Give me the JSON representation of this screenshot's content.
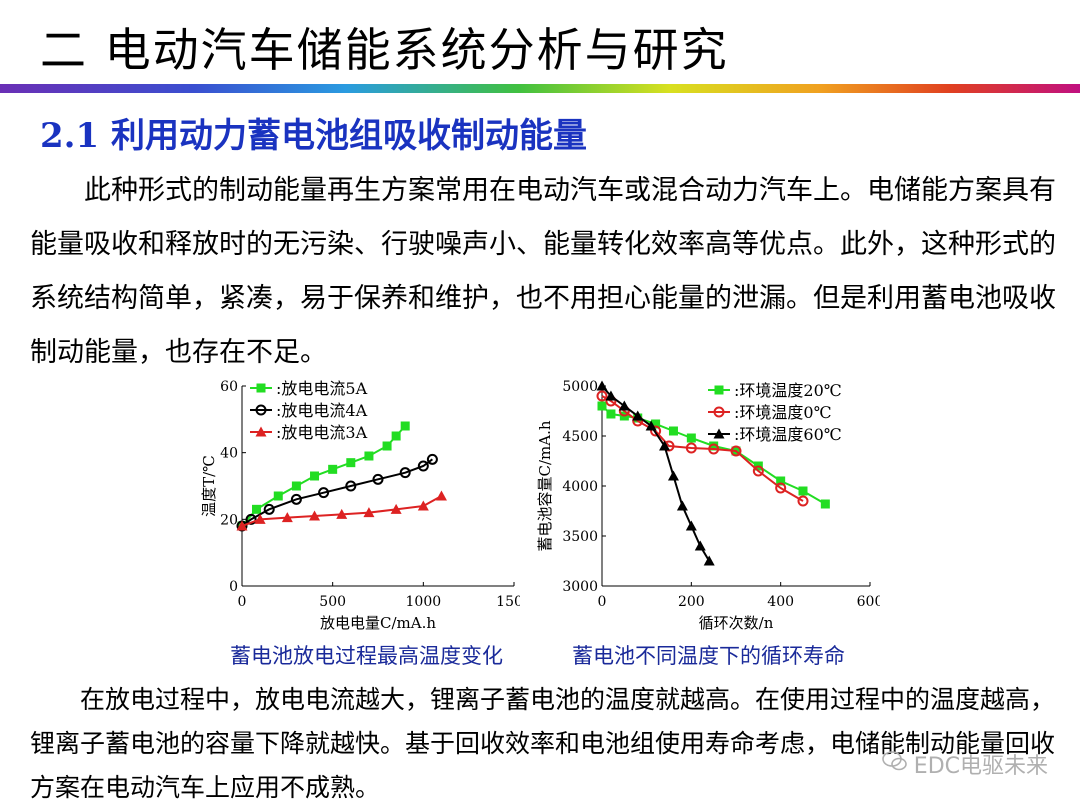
{
  "slide": {
    "title": "二  电动汽车储能系统分析与研究",
    "section_heading": "2.1 利用动力蓄电池组吸收制动能量"
  },
  "paragraphs": {
    "p1": "　　此种形式的制动能量再生方案常用在电动汽车或混合动力汽车上。电储能方案具有能量吸收和释放时的无污染、行驶噪声小、能量转化效率高等优点。此外，这种形式的系统结构简单，紧凑，易于保养和维护，也不用担心能量的泄漏。但是利用蓄电池吸收制动能量，也存在不足。",
    "p2": "　　在放电过程中，放电电流越大，锂离子蓄电池的温度就越高。在使用过程中的温度越高，锂离子蓄电池的容量下降就越快。基于回收效率和电池组使用寿命考虑，电储能制动能量回收方案在电动汽车上应用不成熟。"
  },
  "captions": {
    "left": "蓄电池放电过程最高温度变化",
    "right": "蓄电池不同温度下的循环寿命"
  },
  "watermark": "EDC电驱未来",
  "chart_data": [
    {
      "type": "line",
      "xlabel": "放电电量C/mA.h",
      "ylabel": "温度T/℃",
      "xlim": [
        0,
        1500
      ],
      "ylim": [
        0,
        60
      ],
      "xticks": [
        "0",
        "500",
        "1000",
        "1500"
      ],
      "yticks": [
        "0",
        "20",
        "40",
        "60"
      ],
      "legend_position": "top-left",
      "series": [
        {
          "name": ":放电电流5A",
          "color": "#22dd22",
          "marker": "square",
          "x": [
            0,
            80,
            200,
            300,
            400,
            500,
            600,
            700,
            800,
            850,
            900
          ],
          "y": [
            18,
            23,
            27,
            30,
            33,
            35,
            37,
            39,
            42,
            45,
            48
          ]
        },
        {
          "name": ":放电电流4A",
          "color": "#000000",
          "marker": "circle",
          "x": [
            0,
            50,
            150,
            300,
            450,
            600,
            750,
            900,
            1000,
            1050
          ],
          "y": [
            18,
            20,
            23,
            26,
            28,
            30,
            32,
            34,
            36,
            38
          ]
        },
        {
          "name": ":放电电流3A",
          "color": "#dd2222",
          "marker": "triangle",
          "x": [
            0,
            100,
            250,
            400,
            550,
            700,
            850,
            1000,
            1100
          ],
          "y": [
            18,
            20,
            20.5,
            21,
            21.5,
            22,
            23,
            24,
            27
          ]
        }
      ]
    },
    {
      "type": "line",
      "xlabel": "循环次数/n",
      "ylabel": "蓄电池容量C/mA.h",
      "xlim": [
        0,
        600
      ],
      "ylim": [
        3000,
        5000
      ],
      "xticks": [
        "0",
        "200",
        "400",
        "600"
      ],
      "yticks": [
        "3000",
        "3500",
        "4000",
        "4500",
        "5000"
      ],
      "legend_position": "top-right",
      "series": [
        {
          "name": ":环境温度20℃",
          "color": "#22dd22",
          "marker": "square",
          "x": [
            0,
            20,
            50,
            80,
            120,
            160,
            200,
            250,
            300,
            350,
            400,
            450,
            500
          ],
          "y": [
            4800,
            4720,
            4700,
            4680,
            4620,
            4550,
            4480,
            4400,
            4350,
            4200,
            4050,
            3950,
            3820
          ]
        },
        {
          "name": ":环境温度0℃",
          "color": "#dd2222",
          "marker": "circle",
          "x": [
            0,
            20,
            50,
            80,
            120,
            150,
            200,
            250,
            300,
            350,
            400,
            450
          ],
          "y": [
            4900,
            4850,
            4750,
            4650,
            4550,
            4400,
            4380,
            4370,
            4350,
            4150,
            3980,
            3850
          ]
        },
        {
          "name": ":环境温度60℃",
          "color": "#000000",
          "marker": "triangle",
          "x": [
            0,
            20,
            50,
            80,
            110,
            140,
            160,
            180,
            200,
            220,
            240
          ],
          "y": [
            5000,
            4900,
            4800,
            4700,
            4600,
            4400,
            4100,
            3800,
            3600,
            3400,
            3250
          ]
        }
      ]
    }
  ]
}
